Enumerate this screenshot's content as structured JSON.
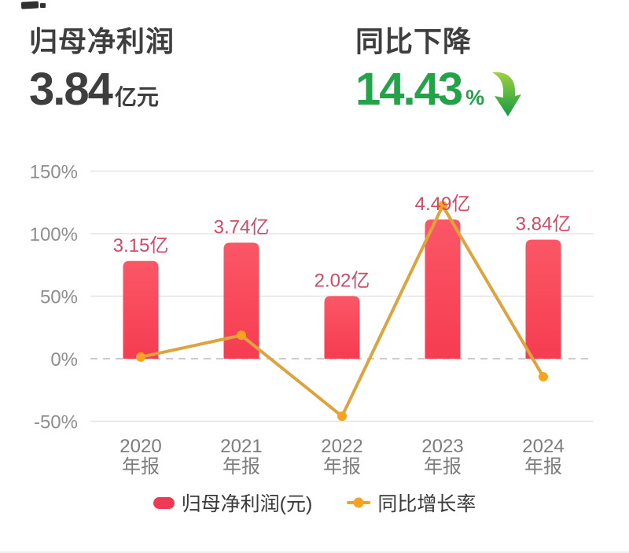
{
  "header": {
    "metric_title": "归母净利润",
    "metric_value": "3.84",
    "metric_unit": "亿元",
    "change_title": "同比下降",
    "change_value": "14.43",
    "change_unit": "%",
    "change_direction": "down",
    "accent_green": "#23a24a",
    "text_dark": "#3e3e3e"
  },
  "chart_data": {
    "type": "combo-bar-line",
    "categories": [
      {
        "year": "2020",
        "period": "年报"
      },
      {
        "year": "2021",
        "period": "年报"
      },
      {
        "year": "2022",
        "period": "年报"
      },
      {
        "year": "2023",
        "period": "年报"
      },
      {
        "year": "2024",
        "period": "年报"
      }
    ],
    "series": [
      {
        "name": "归母净利润(元)",
        "type": "bar",
        "unit": "亿",
        "values": [
          3.15,
          3.74,
          2.02,
          4.49,
          3.84
        ],
        "labels": [
          "3.15亿",
          "3.74亿",
          "2.02亿",
          "4.49亿",
          "3.84亿"
        ],
        "color_top": "#fb5766",
        "color_bottom": "#f63c51",
        "label_color": "#cf4b66"
      },
      {
        "name": "同比增长率",
        "type": "line",
        "unit": "%",
        "values": [
          1.3,
          18.7,
          -46.0,
          122.3,
          -14.43
        ],
        "line_color": "#dca33e",
        "dot_color": "#f6a41f"
      }
    ],
    "y_axis": {
      "ticks": [
        150,
        100,
        50,
        0,
        -50
      ],
      "tick_suffix": "%",
      "range": [
        -50,
        150
      ],
      "zero_line_dashed": true
    },
    "bar_scale_pct_per_unit": 24.8,
    "grid": true,
    "grid_color": "#e4e4e4",
    "zero_line_color": "#cccccc",
    "axis_text_color": "#8f8f8f",
    "x_text_color": "#7d7d7d",
    "legend_position": "bottom"
  },
  "legend": {
    "bar_label": "归母净利润(元)",
    "line_label": "同比增长率"
  }
}
